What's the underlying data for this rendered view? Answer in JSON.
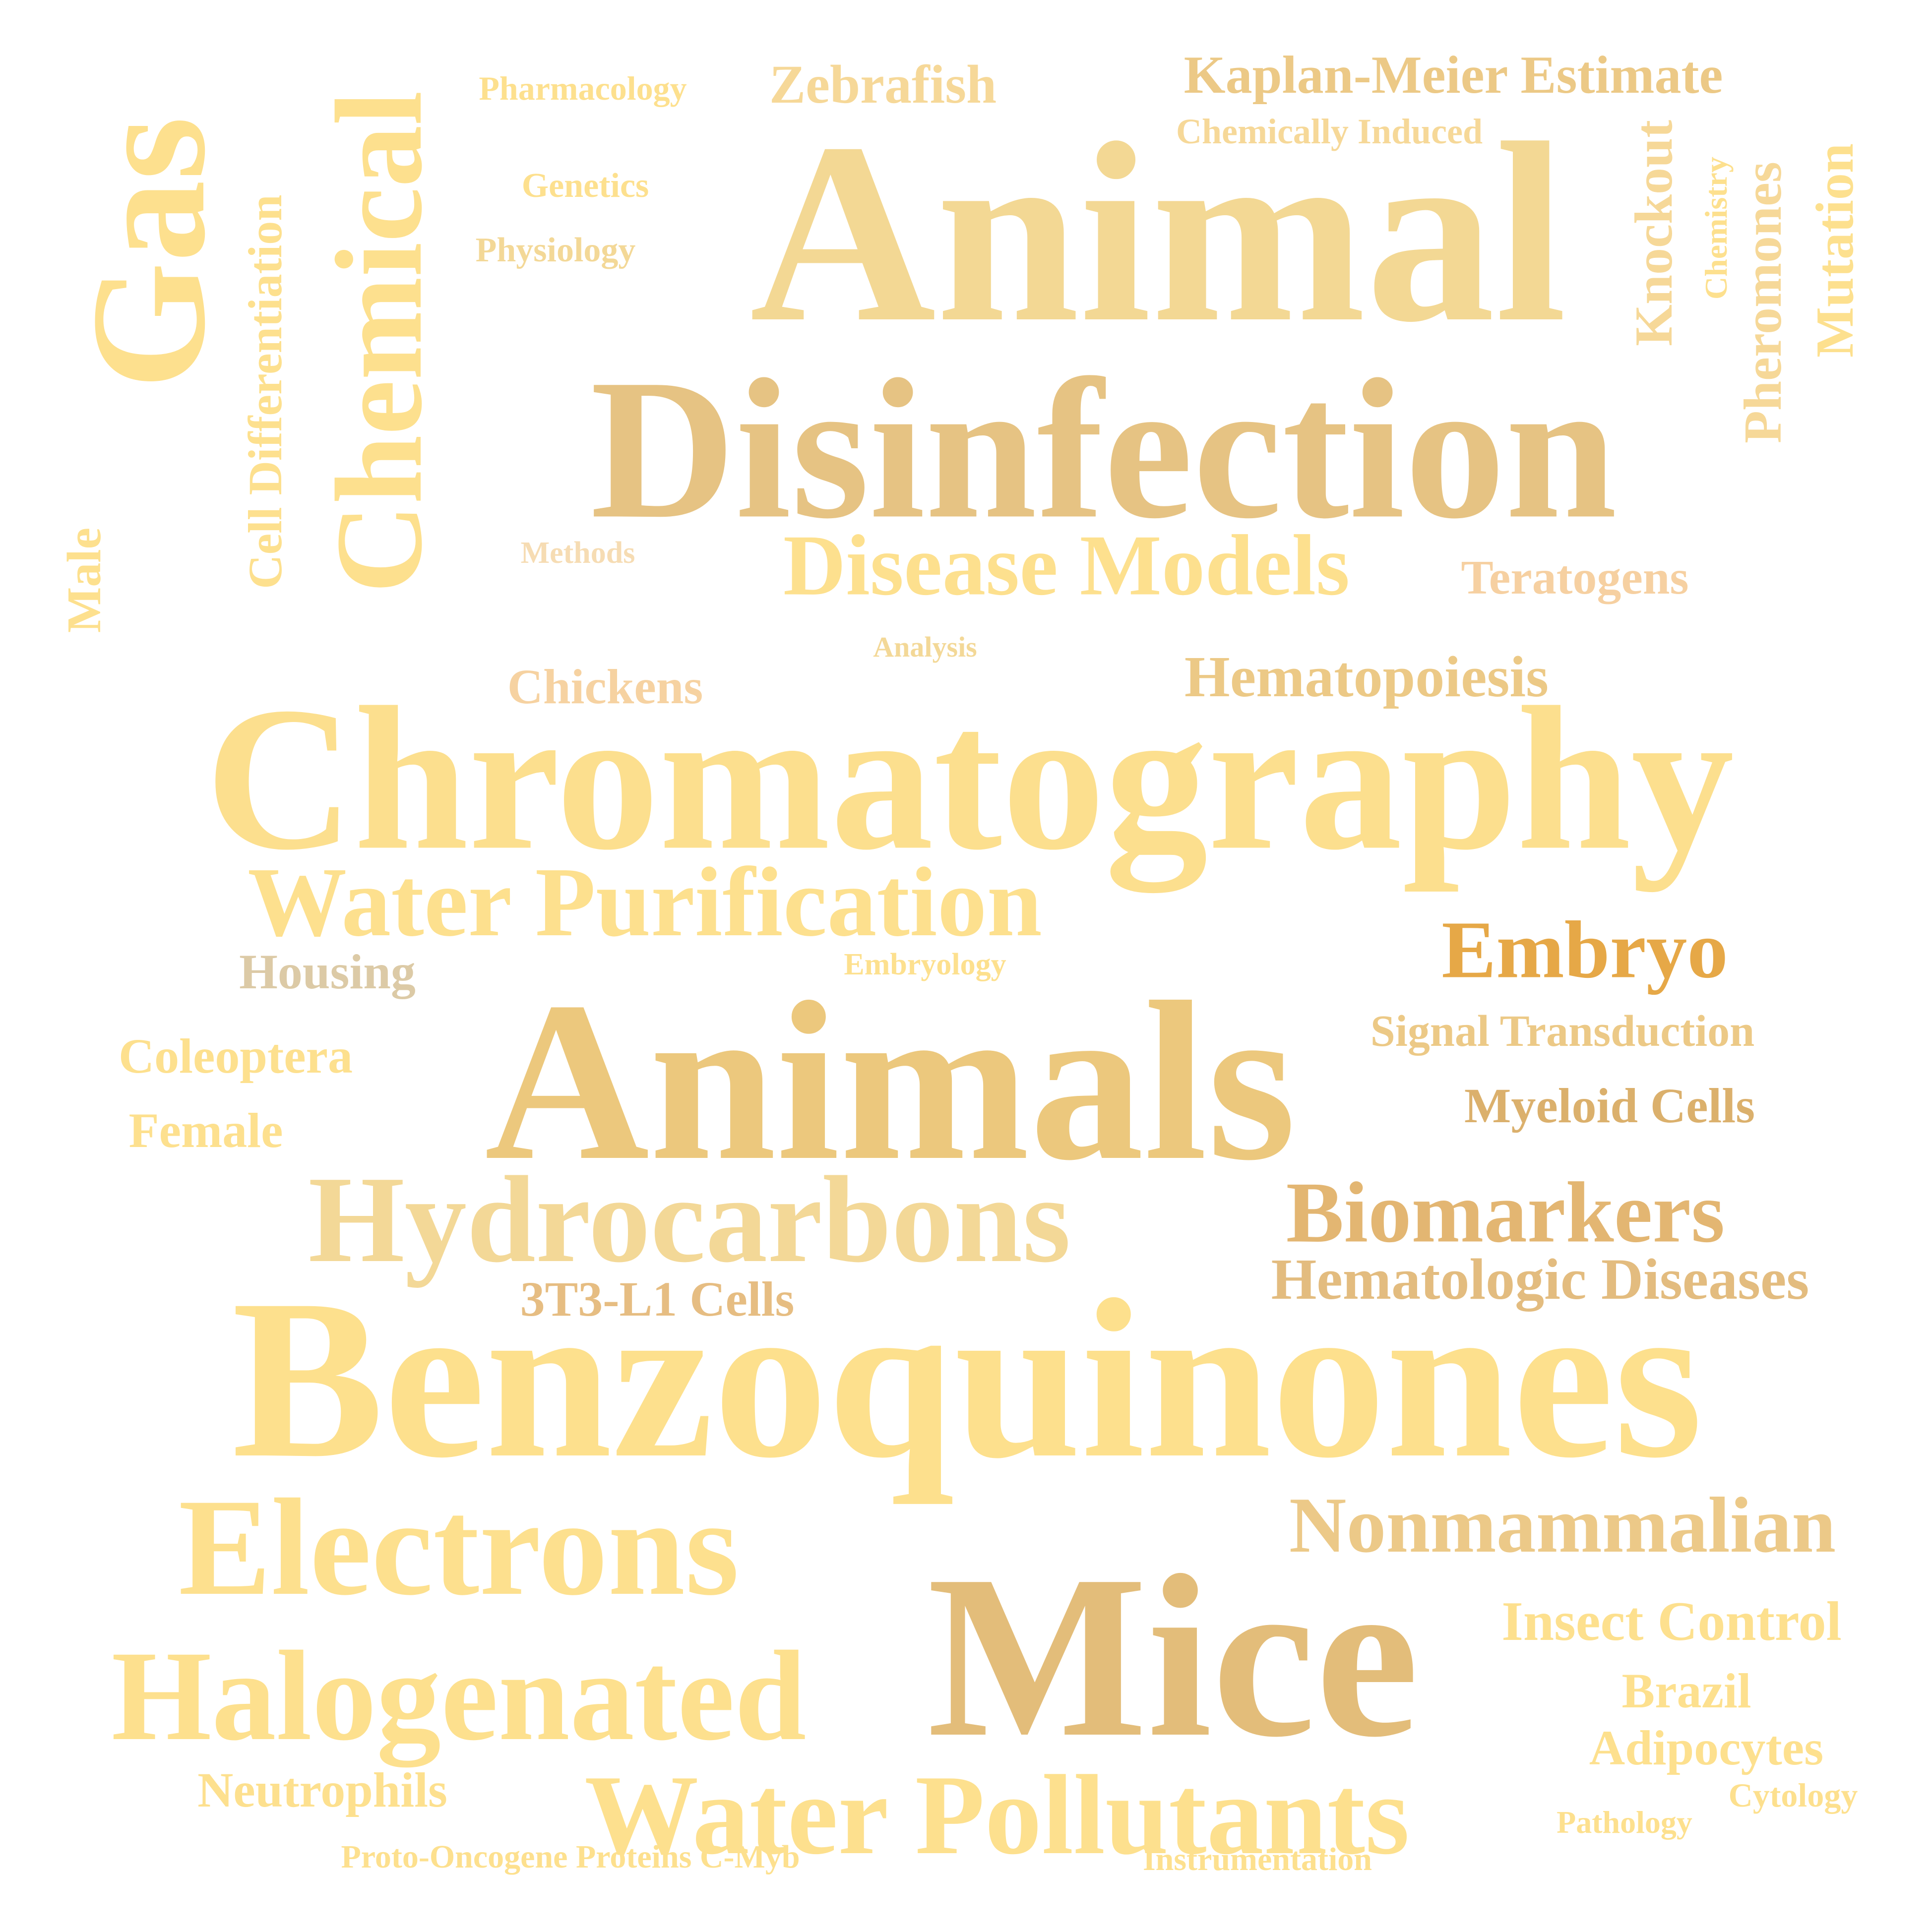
{
  "words": {
    "animal": {
      "text": "Animal",
      "color": "#f3d894"
    },
    "disinfection": {
      "text": "Disinfection",
      "color": "#e6c383"
    },
    "chromatography": {
      "text": "Chromatography",
      "color": "#fcdf8e"
    },
    "animals": {
      "text": "Animals",
      "color": "#ecc87d"
    },
    "benzoquinones": {
      "text": "Benzoquinones",
      "color": "#fde08d"
    },
    "mice": {
      "text": "Mice",
      "color": "#e3bd7a"
    },
    "electrons": {
      "text": "Electrons",
      "color": "#fde08e"
    },
    "halogenated": {
      "text": "Halogenated",
      "color": "#fde08e"
    },
    "water_pollutants": {
      "text": "Water Pollutants",
      "color": "#fde08e"
    },
    "hydrocarbons": {
      "text": "Hydrocarbons",
      "color": "#f3d897"
    },
    "water_purification": {
      "text": "Water Purification",
      "color": "#fde08e"
    },
    "disease_models": {
      "text": "Disease Models",
      "color": "#fde08e"
    },
    "biomarkers": {
      "text": "Biomarkers",
      "color": "#e3b672"
    },
    "embryo": {
      "text": "Embryo",
      "color": "#e6a847"
    },
    "nonmammalian": {
      "text": "Nonmammalian",
      "color": "#ecc988"
    },
    "hematologic": {
      "text": "Hematologic Diseases",
      "color": "#e3bc7f"
    },
    "hematopoiesis": {
      "text": "Hematopoiesis",
      "color": "#ecc986"
    },
    "kaplan": {
      "text": "Kaplan-Meier Estimate",
      "color": "#ecc986"
    },
    "zebrafish": {
      "text": "Zebrafish",
      "color": "#f6d898"
    },
    "teratogens": {
      "text": "Teratogens",
      "color": "#f6d0a1"
    },
    "insect_control": {
      "text": "Insect Control",
      "color": "#fde08e"
    },
    "signal": {
      "text": "Signal Transduction",
      "color": "#ecc986"
    },
    "myeloid": {
      "text": "Myeloid Cells",
      "color": "#dbb06c"
    },
    "brazil": {
      "text": "Brazil",
      "color": "#fde08e"
    },
    "adipocytes": {
      "text": "Adipocytes",
      "color": "#fde08e"
    },
    "t3": {
      "text": "3T3-L1 Cells",
      "color": "#e6bd82"
    },
    "chickens": {
      "text": "Chickens",
      "color": "#f6d2a1"
    },
    "coleoptera": {
      "text": "Coleoptera",
      "color": "#fde08e"
    },
    "female": {
      "text": "Female",
      "color": "#fde08e"
    },
    "neutrophils": {
      "text": "Neutrophils",
      "color": "#fde08e"
    },
    "housing": {
      "text": "Housing",
      "color": "#dccaa6"
    },
    "chemically": {
      "text": "Chemically Induced",
      "color": "#f6d898"
    },
    "pharmacology": {
      "text": "Pharmacology",
      "color": "#fde08e"
    },
    "genetics": {
      "text": "Genetics",
      "color": "#fde08e"
    },
    "physiology": {
      "text": "Physiology",
      "color": "#f3d897"
    },
    "methods": {
      "text": "Methods",
      "color": "#f6dcb3"
    },
    "analysis": {
      "text": "Analysis",
      "color": "#f3d897"
    },
    "embryology": {
      "text": "Embryology",
      "color": "#fde08e"
    },
    "proto": {
      "text": "Proto-Oncogene Proteins C-Myb",
      "color": "#fde08e"
    },
    "instrumentation": {
      "text": "Instrumentation",
      "color": "#fde08e"
    },
    "cytology": {
      "text": "Cytology",
      "color": "#fde08e"
    },
    "pathology": {
      "text": "Pathology",
      "color": "#fde08e"
    },
    "gas": {
      "text": "Gas",
      "color": "#fde08e"
    },
    "chemical": {
      "text": "Chemical",
      "color": "#fde08e"
    },
    "cell_diff": {
      "text": "Cell Differentiation",
      "color": "#fde08e"
    },
    "male": {
      "text": "Male",
      "color": "#fde08e"
    },
    "knockout": {
      "text": "Knockout",
      "color": "#f6d898"
    },
    "chemistry": {
      "text": "Chemistry",
      "color": "#fde08e"
    },
    "pheromones": {
      "text": "Pheromones",
      "color": "#f6d898"
    },
    "mutation": {
      "text": "Mutation",
      "color": "#fde08e"
    }
  }
}
